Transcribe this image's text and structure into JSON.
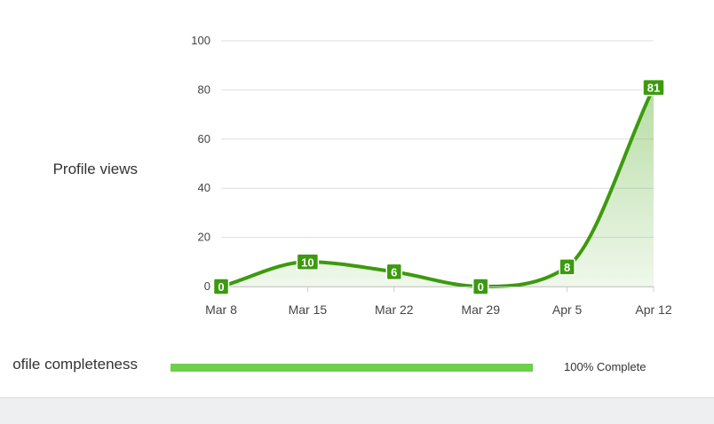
{
  "rows": {
    "views_label": "Profile views",
    "completeness_label": "ofile completeness"
  },
  "completeness": {
    "value_fraction": 1.0,
    "text": "100% Complete",
    "color": "#6dd04a"
  },
  "chart_data": {
    "type": "area",
    "smooth": true,
    "x": [
      "Mar 8",
      "Mar 15",
      "Mar 22",
      "Mar 29",
      "Apr 5",
      "Apr 12"
    ],
    "values": [
      0,
      10,
      6,
      0,
      8,
      81
    ],
    "data_labels": [
      "0",
      "10",
      "6",
      "0",
      "8",
      "81"
    ],
    "y_ticks": [
      0,
      20,
      40,
      60,
      80,
      100
    ],
    "ylim": [
      0,
      100
    ],
    "grid": true,
    "title": "",
    "xlabel": "",
    "ylabel": "",
    "line_color": "#3c9a0e",
    "fill_color": "#7cc15a",
    "label_bg_color": "#3c9a0e"
  }
}
